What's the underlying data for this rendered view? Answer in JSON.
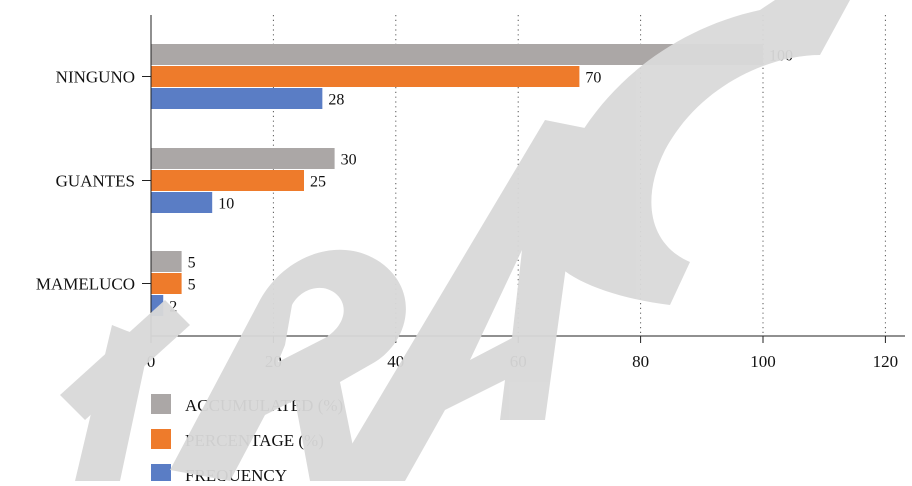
{
  "chart_data": {
    "type": "bar",
    "orientation": "horizontal",
    "categories": [
      "NINGUNO",
      "GUANTES",
      "MAMELUCO"
    ],
    "series": [
      {
        "name": "ACCUMULATED (%)",
        "color": "#aba7a6",
        "values": [
          100,
          30,
          5
        ]
      },
      {
        "name": "PERCENTAGE (%)",
        "color": "#ee7b2b",
        "values": [
          70,
          25,
          5
        ]
      },
      {
        "name": "FREQUENCY",
        "color": "#5a7dc5",
        "values": [
          28,
          10,
          2
        ]
      }
    ],
    "xlim": [
      0,
      120
    ],
    "xticks": [
      0,
      20,
      40,
      60,
      80,
      100,
      120
    ],
    "grid": "vertical dotted",
    "legend_position": "bottom-left",
    "title": "",
    "xlabel": "",
    "ylabel": ""
  },
  "watermark": {
    "color": "#d9d9d9"
  }
}
